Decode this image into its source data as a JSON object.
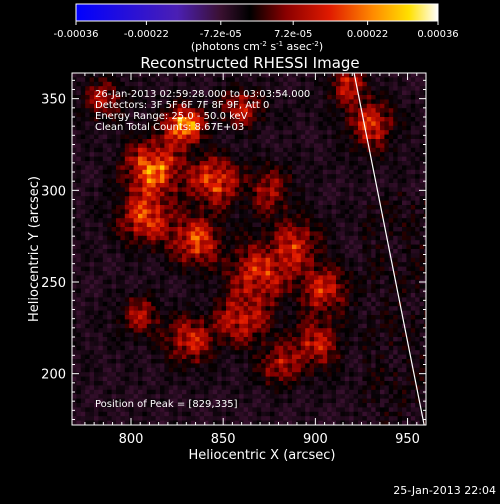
{
  "colorbar": {
    "ticks": [
      "-0.00036",
      "-0.00022",
      "-7.2e-05",
      "7.2e-05",
      "0.00022",
      "0.00036"
    ],
    "unit_label": "(photons cm",
    "unit_sup1": "-2",
    "unit_mid1": " s",
    "unit_sup2": "-1",
    "unit_mid2": " asec",
    "unit_sup3": "-2",
    "unit_end": ")",
    "range": [
      -0.00036,
      0.00036
    ]
  },
  "chart_data": {
    "type": "heatmap",
    "title": "Reconstructed RHESSI Image",
    "xlabel": "Heliocentric X (arcsec)",
    "ylabel": "Heliocentric Y (arcsec)",
    "xlim": [
      768,
      960
    ],
    "ylim": [
      172,
      364
    ],
    "x_ticks": [
      800,
      850,
      900,
      950
    ],
    "y_ticks": [
      200,
      250,
      300,
      350
    ],
    "annotations": [
      "26-Jan-2013 02:59:28.000 to 03:03:54.000",
      "Detectors: 3F 5F 6F 7F 8F 9F, Att 0",
      "Energy Range: 25.0 - 50.0 keV",
      "Clean    Total Counts: 8.67E+03"
    ],
    "peak_label": "Position of Peak = [829,335]",
    "peak": [
      829,
      335
    ],
    "limb_line": [
      [
        921,
        364
      ],
      [
        959,
        172
      ]
    ]
  },
  "footer": {
    "timestamp": "25-Jan-2013 22:04"
  }
}
